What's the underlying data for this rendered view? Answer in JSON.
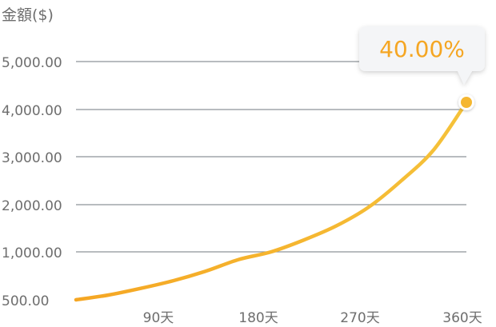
{
  "chart_data": {
    "type": "line",
    "title": "",
    "ylabel": "金額($)",
    "xlabel": "",
    "x_ticks": [
      {
        "value": 90,
        "label": "90天"
      },
      {
        "value": 180,
        "label": "180天"
      },
      {
        "value": 270,
        "label": "270天"
      },
      {
        "value": 360,
        "label": "360天"
      }
    ],
    "y_ticks": [
      {
        "value": 500,
        "label": "500.00"
      },
      {
        "value": 1000,
        "label": "1,000.00"
      },
      {
        "value": 2000,
        "label": "2,000.00"
      },
      {
        "value": 3000,
        "label": "3,000.00"
      },
      {
        "value": 4000,
        "label": "4,000.00"
      },
      {
        "value": 5000,
        "label": "5,000.00"
      }
    ],
    "xlim": [
      0,
      360
    ],
    "grid": true,
    "series": [
      {
        "x": [
          0,
          30,
          60,
          90,
          120,
          150,
          180,
          210,
          240,
          270,
          300,
          330,
          360
        ],
        "y": [
          500,
          550,
          620,
          700,
          800,
          920,
          1000,
          1250,
          1550,
          1950,
          2500,
          3150,
          4150
        ],
        "color": "#f5b731"
      }
    ],
    "annotation": {
      "text": "40.00%",
      "x": 360,
      "y": 4150,
      "color": "#f5a623"
    }
  }
}
